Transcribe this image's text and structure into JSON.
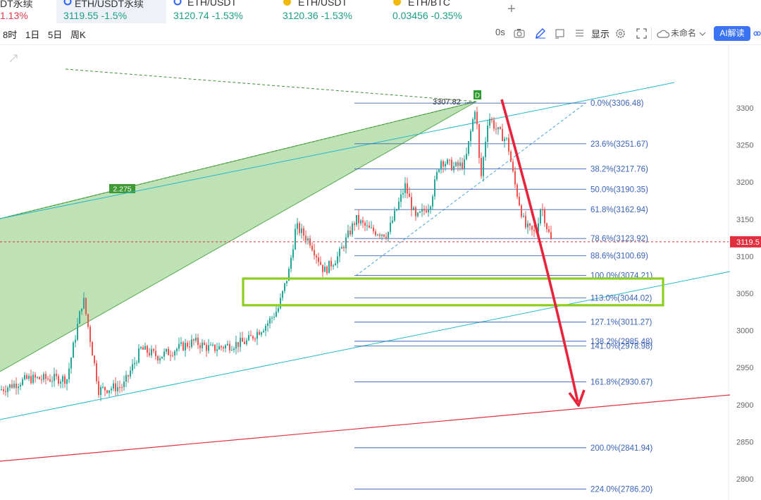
{
  "tabs": [
    {
      "name": "DT永续",
      "quote": "1.13%",
      "dir": "down",
      "icon": ""
    },
    {
      "name": "ETH/USDT永续",
      "quote": "3119.55 -1.5%",
      "dir": "up",
      "icon": "c-icon"
    },
    {
      "name": "ETH/USDT",
      "quote": "3120.74 -1.53%",
      "dir": "up",
      "icon": "c-icon"
    },
    {
      "name": "ETH/USDT",
      "quote": "3120.36 -1.53%",
      "dir": "up",
      "icon": "coin-icon"
    },
    {
      "name": "ETH/BTC",
      "quote": "0.03456 -0.35%",
      "dir": "up",
      "icon": "coin-icon"
    }
  ],
  "toolbar": {
    "timeframes": [
      "8时",
      "1日",
      "5日",
      "周K"
    ],
    "replay": "0s",
    "display": "显示",
    "workspace": "未命名",
    "ai": "AI解读"
  },
  "chart_data": {
    "type": "candlestick",
    "price_axis": [
      3300,
      3250,
      3200,
      3150,
      3100,
      3050,
      3000,
      2950,
      2900,
      2850,
      2800
    ],
    "current_price_label": "3119.5",
    "ylim": [
      2780,
      3350
    ],
    "fib_levels": [
      {
        "label": "0.0%(3306.48)",
        "price": 3306.48
      },
      {
        "label": "23.6%(3251.67)",
        "price": 3251.67
      },
      {
        "label": "38.2%(3217.76)",
        "price": 3217.76
      },
      {
        "label": "50.0%(3190.35)",
        "price": 3190.35
      },
      {
        "label": "61.8%(3162.94)",
        "price": 3162.94
      },
      {
        "label": "78.6%(3123.92)",
        "price": 3123.92
      },
      {
        "label": "88.6%(3100.69)",
        "price": 3100.69
      },
      {
        "label": "100.0%(3074.21)",
        "price": 3074.21
      },
      {
        "label": "113.0%(3044.02)",
        "price": 3044.02
      },
      {
        "label": "127.1%(3011.27)",
        "price": 3011.27
      },
      {
        "label": "138.2%(2985.48)",
        "price": 2985.48
      },
      {
        "label": "141.0%(2978.98)",
        "price": 2978.98
      },
      {
        "label": "161.8%(2930.67)",
        "price": 2930.67
      },
      {
        "label": "200.0%(2841.94)",
        "price": 2841.94
      },
      {
        "label": "224.0%(2786.20)",
        "price": 2786.2
      }
    ],
    "peak_label": "3307.82",
    "pattern_label": "D",
    "ratio_label": "2.275",
    "support_zone": [
      3034,
      3070
    ],
    "key_points": [
      {
        "x": 0,
        "price": 2920
      },
      {
        "x": 40,
        "price": 2935
      },
      {
        "x": 95,
        "price": 2935
      },
      {
        "x": 118,
        "price": 3045
      },
      {
        "x": 140,
        "price": 2920
      },
      {
        "x": 175,
        "price": 2925
      },
      {
        "x": 200,
        "price": 2975
      },
      {
        "x": 225,
        "price": 2965
      },
      {
        "x": 275,
        "price": 2985
      },
      {
        "x": 300,
        "price": 2975
      },
      {
        "x": 350,
        "price": 2985
      },
      {
        "x": 380,
        "price": 3010
      },
      {
        "x": 395,
        "price": 3030
      },
      {
        "x": 410,
        "price": 3080
      },
      {
        "x": 420,
        "price": 3140
      },
      {
        "x": 440,
        "price": 3120
      },
      {
        "x": 460,
        "price": 3080
      },
      {
        "x": 480,
        "price": 3100
      },
      {
        "x": 505,
        "price": 3150
      },
      {
        "x": 525,
        "price": 3135
      },
      {
        "x": 550,
        "price": 3130
      },
      {
        "x": 575,
        "price": 3195
      },
      {
        "x": 590,
        "price": 3150
      },
      {
        "x": 610,
        "price": 3170
      },
      {
        "x": 625,
        "price": 3230
      },
      {
        "x": 645,
        "price": 3220
      },
      {
        "x": 660,
        "price": 3225
      },
      {
        "x": 675,
        "price": 3305
      },
      {
        "x": 682,
        "price": 3200
      },
      {
        "x": 693,
        "price": 3290
      },
      {
        "x": 705,
        "price": 3270
      },
      {
        "x": 720,
        "price": 3255
      },
      {
        "x": 730,
        "price": 3200
      },
      {
        "x": 745,
        "price": 3140
      },
      {
        "x": 760,
        "price": 3130
      },
      {
        "x": 768,
        "price": 3170
      },
      {
        "x": 776,
        "price": 3140
      },
      {
        "x": 783,
        "price": 3118
      }
    ]
  }
}
